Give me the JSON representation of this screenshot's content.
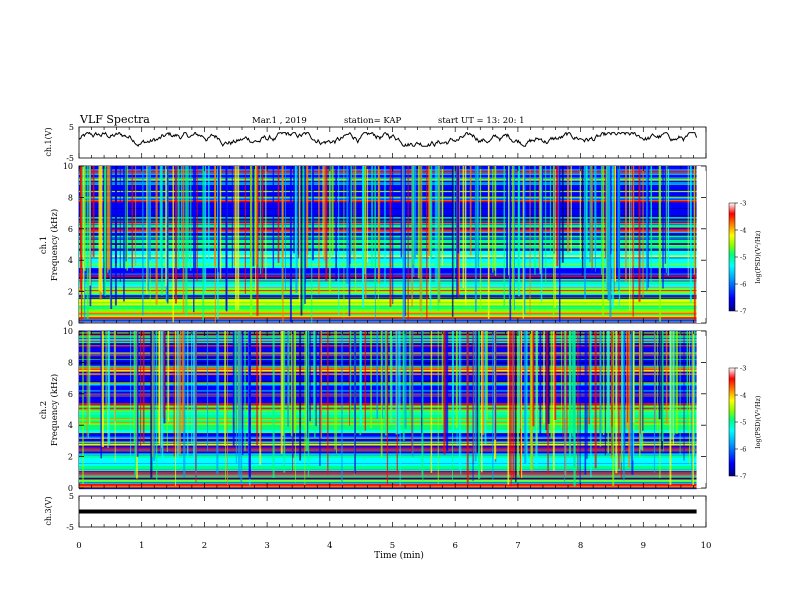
{
  "header": {
    "title": "VLF Spectra",
    "date": "Mar.1 , 2019",
    "station": "station= KAP",
    "start": "start UT = 13: 20: 1"
  },
  "chart_data": [
    {
      "type": "line",
      "panel": "ch1-waveform",
      "ylabel": "ch.1(V)",
      "ylim": [
        -5,
        5
      ],
      "yticks": [
        "5",
        "-5"
      ],
      "x_range_min": [
        0,
        9.85
      ],
      "approx_level_v": [
        0.5,
        2.0
      ],
      "note_series": "noisy waveform, values fluctuate roughly between -1 and 3 V"
    },
    {
      "type": "heatmap",
      "panel": "ch1-spectrogram",
      "ylabel": "ch.1\nFrequency (kHz)",
      "ylim": [
        0,
        10
      ],
      "yticks": [
        "0",
        "2",
        "4",
        "6",
        "8",
        "10"
      ],
      "x_range_min": [
        0,
        9.85
      ],
      "colorbar": {
        "label": "log(PSD)(V²/Hz)",
        "range": [
          -7,
          -3
        ],
        "ticks": [
          "-3",
          "-4",
          "-5",
          "-6",
          "-7"
        ]
      },
      "bands_khz": [
        {
          "from": 0.0,
          "to": 0.3,
          "level": -3.5
        },
        {
          "from": 0.3,
          "to": 1.0,
          "level": -4.8
        },
        {
          "from": 1.0,
          "to": 2.2,
          "level": -5.0
        },
        {
          "from": 2.2,
          "to": 2.8,
          "level": -5.4
        },
        {
          "from": 2.8,
          "to": 3.5,
          "level": -6.6
        },
        {
          "from": 3.5,
          "to": 4.6,
          "level": -5.6
        },
        {
          "from": 4.6,
          "to": 5.6,
          "level": -5.2
        },
        {
          "from": 5.6,
          "to": 10.0,
          "level": -6.2
        }
      ]
    },
    {
      "type": "heatmap",
      "panel": "ch2-spectrogram",
      "ylabel": "ch.2\nFrequency (kHz)",
      "ylim": [
        0,
        10
      ],
      "yticks": [
        "0",
        "2",
        "4",
        "6",
        "8",
        "10"
      ],
      "x_range_min": [
        0,
        9.85
      ],
      "colorbar": {
        "label": "log(PSD)(V²/Hz)",
        "range": [
          -7,
          -3
        ],
        "ticks": [
          "-3",
          "-4",
          "-5",
          "-6",
          "-7"
        ]
      },
      "bands_khz": [
        {
          "from": 0.0,
          "to": 0.3,
          "level": -3.5
        },
        {
          "from": 0.3,
          "to": 1.4,
          "level": -5.2
        },
        {
          "from": 1.4,
          "to": 2.2,
          "level": -5.6
        },
        {
          "from": 2.2,
          "to": 3.5,
          "level": -6.4
        },
        {
          "from": 3.5,
          "to": 5.2,
          "level": -5.3
        },
        {
          "from": 5.2,
          "to": 10.0,
          "level": -6.2
        }
      ]
    },
    {
      "type": "line",
      "panel": "ch3-waveform",
      "ylabel": "ch.3(V)",
      "ylim": [
        -5,
        5
      ],
      "yticks": [
        "5",
        "-5"
      ],
      "x_range_min": [
        0,
        9.85
      ],
      "values_constant_v": 0,
      "xlabel": "Time (min)",
      "xlim": [
        0,
        10
      ],
      "xticks": [
        "0",
        "1",
        "2",
        "3",
        "4",
        "5",
        "6",
        "7",
        "8",
        "9",
        "10"
      ]
    }
  ],
  "colors": {
    "colormap": [
      "#00007f",
      "#0000ff",
      "#00a0ff",
      "#00ffff",
      "#00ff80",
      "#80ff00",
      "#ffff00",
      "#ff8000",
      "#ff0000",
      "#ffffff"
    ],
    "line": "#000000",
    "background": "#ffffff"
  }
}
